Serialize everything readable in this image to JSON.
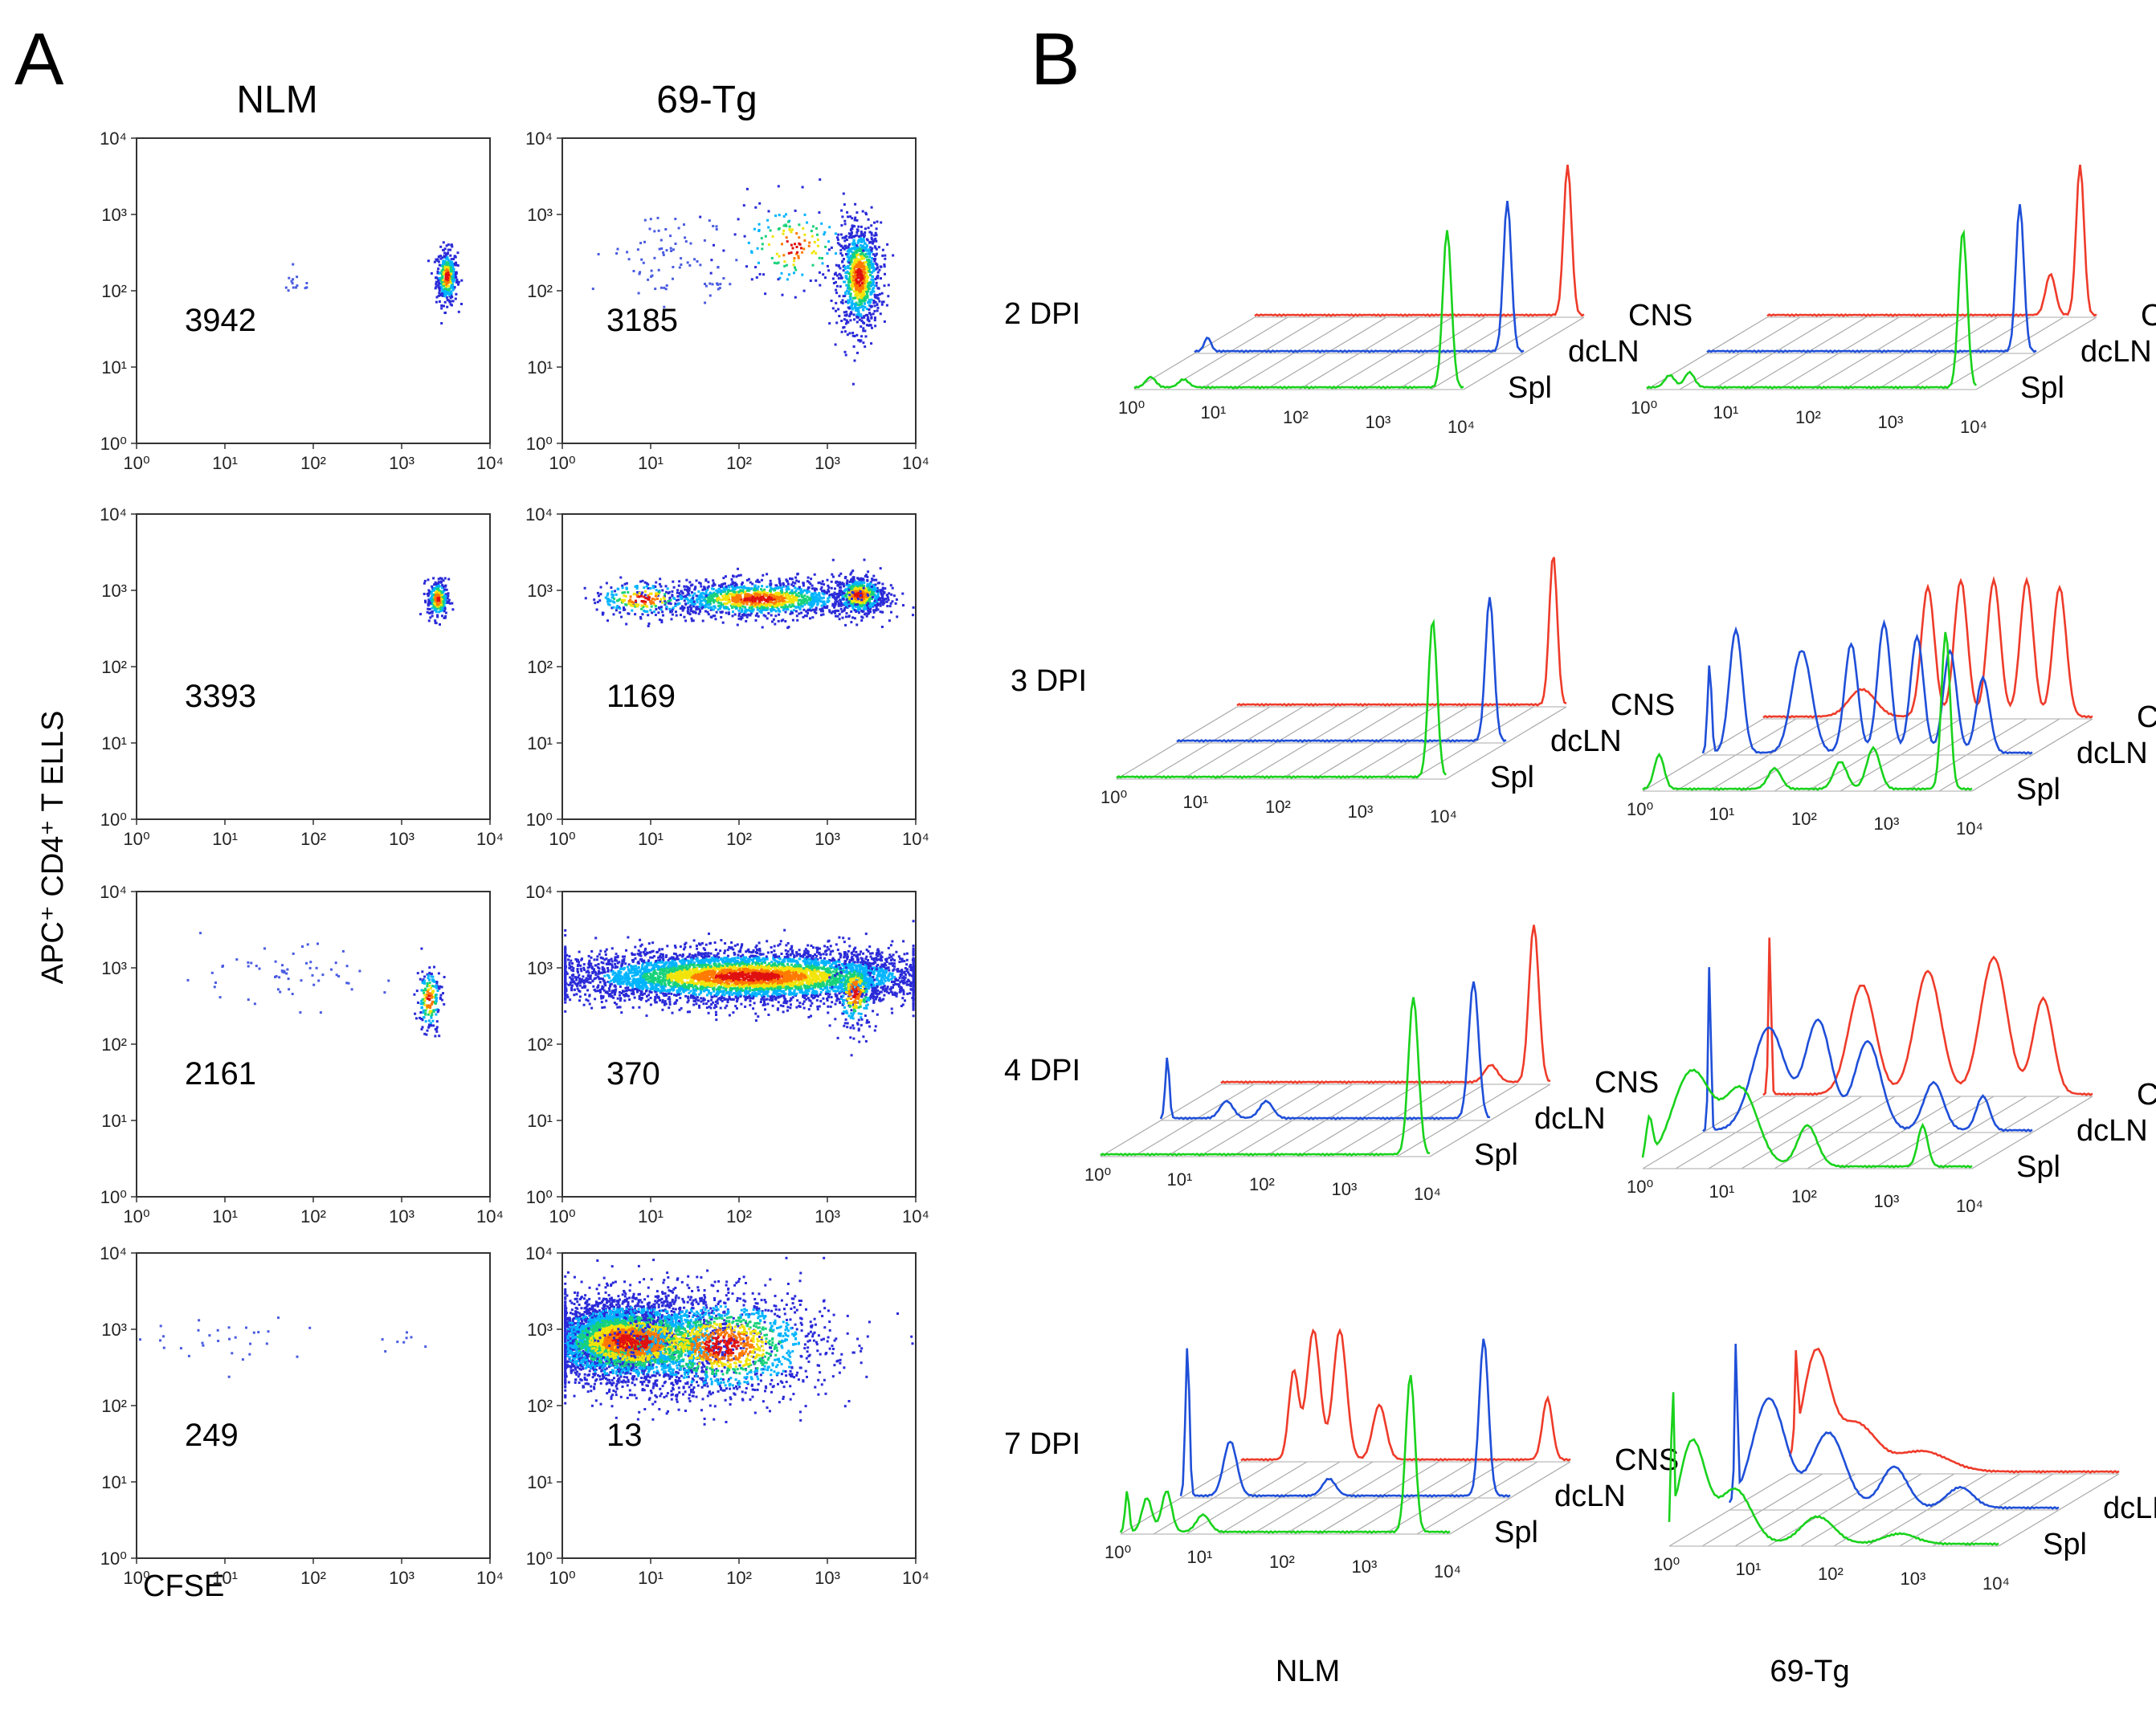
{
  "panel_a": {
    "label": "A",
    "columns": [
      "NLM",
      "69-Tg"
    ],
    "y_axis_label": "APC⁺ CD4⁺ T ELLS",
    "x_axis_label": "CFSE",
    "tick_labels": [
      "10⁰",
      "10¹",
      "10²",
      "10³",
      "10⁴"
    ],
    "rows": [
      {
        "nlm_count": "3942",
        "tg_count": "3185"
      },
      {
        "nlm_count": "3393",
        "tg_count": "1169"
      },
      {
        "nlm_count": "2161",
        "tg_count": "370"
      },
      {
        "nlm_count": "249",
        "tg_count": "13"
      }
    ]
  },
  "panel_b": {
    "label": "B",
    "column_labels": [
      "NLM",
      "69-Tg"
    ],
    "series": [
      {
        "name": "CNS",
        "color": "#ee3b2a"
      },
      {
        "name": "dcLN",
        "color": "#1f4fd8"
      },
      {
        "name": "Spl",
        "color": "#19d21c"
      }
    ],
    "time_points": [
      "2 DPI",
      "3 DPI",
      "4 DPI",
      "7 DPI"
    ]
  },
  "colors": {
    "density": [
      "#2a2ad8",
      "#00b4ff",
      "#18d27a",
      "#f2e40a",
      "#ff7a00",
      "#e01010"
    ]
  }
}
